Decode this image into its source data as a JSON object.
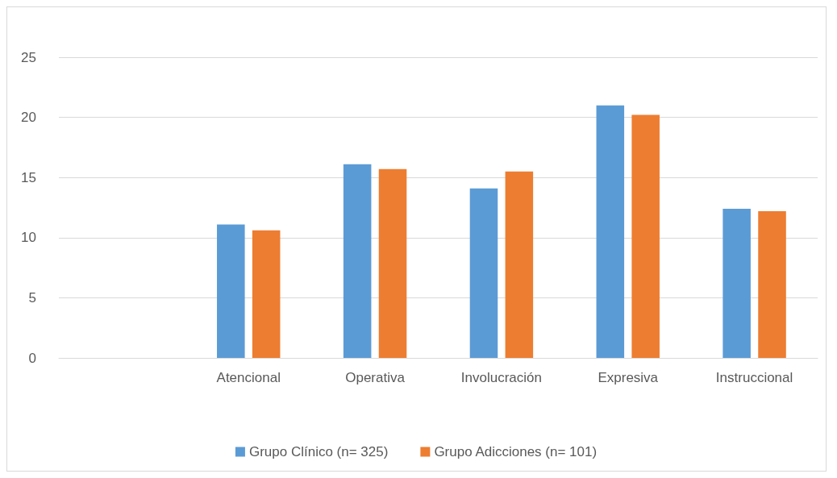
{
  "chart_data": {
    "type": "bar",
    "categories": [
      null,
      "Atencional",
      "Operativa",
      "Involucración",
      "Expresiva",
      "Instruccional"
    ],
    "series": [
      {
        "name": "Grupo Clínico (n= 325)",
        "color": "#5b9bd5",
        "values": [
          null,
          11.1,
          16.1,
          14.1,
          21.0,
          12.4
        ]
      },
      {
        "name": "Grupo Adicciones (n= 101)",
        "color": "#ed7d31",
        "values": [
          null,
          10.6,
          15.7,
          15.5,
          20.2,
          12.2
        ]
      }
    ],
    "ylim": [
      0,
      25
    ],
    "yticks": [
      0,
      5,
      10,
      15,
      20,
      25
    ],
    "grid": "y",
    "legend": "bottom"
  }
}
